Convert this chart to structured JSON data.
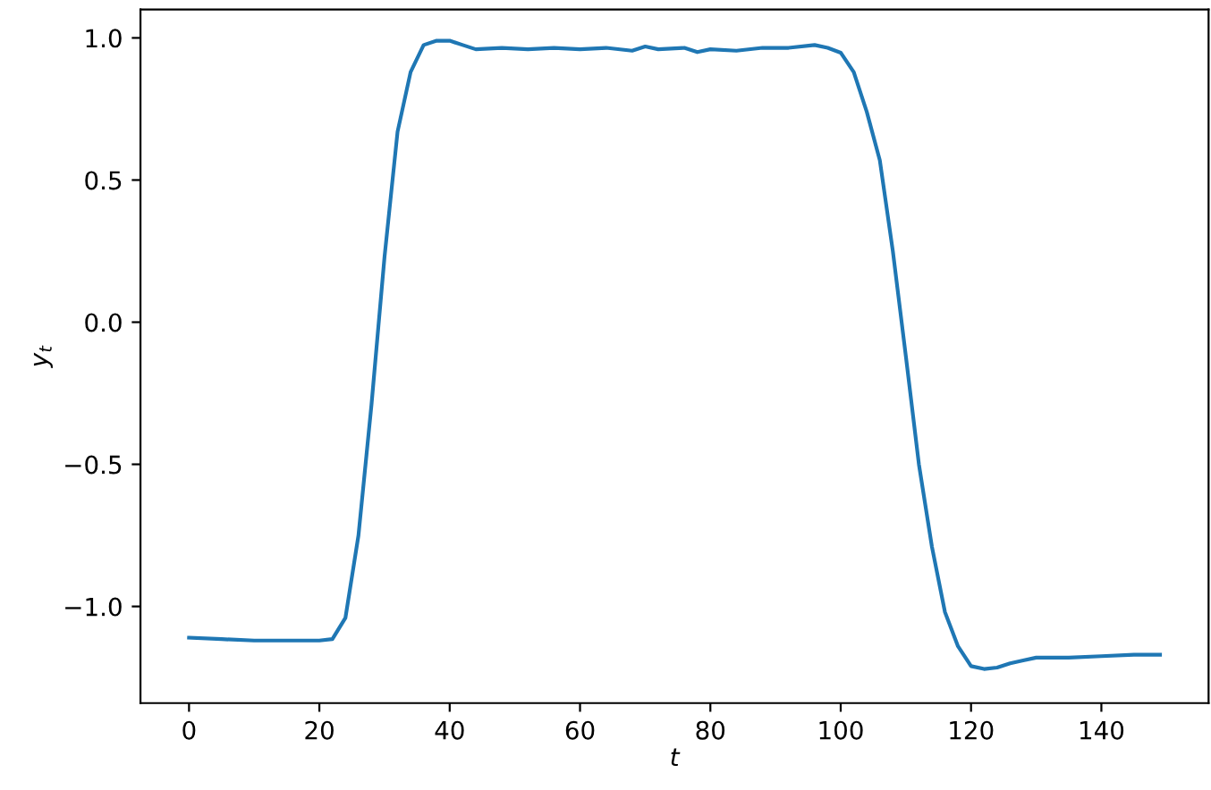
{
  "chart_data": {
    "type": "line",
    "xlabel": "t",
    "ylabel": "y$_{t}$",
    "x": [
      0,
      5,
      10,
      15,
      20,
      22,
      24,
      26,
      28,
      30,
      32,
      34,
      36,
      38,
      40,
      42,
      44,
      48,
      52,
      56,
      60,
      64,
      68,
      70,
      72,
      76,
      78,
      80,
      84,
      88,
      92,
      96,
      98,
      100,
      102,
      104,
      106,
      108,
      110,
      112,
      114,
      116,
      118,
      120,
      122,
      124,
      126,
      128,
      130,
      135,
      140,
      145,
      149
    ],
    "series": [
      {
        "color": "#1f77b4",
        "values": [
          -1.11,
          -1.115,
          -1.12,
          -1.12,
          -1.12,
          -1.115,
          -1.04,
          -0.75,
          -0.29,
          0.23,
          0.67,
          0.88,
          0.975,
          0.99,
          0.99,
          0.975,
          0.96,
          0.965,
          0.96,
          0.965,
          0.96,
          0.965,
          0.955,
          0.97,
          0.96,
          0.965,
          0.95,
          0.96,
          0.955,
          0.965,
          0.965,
          0.975,
          0.965,
          0.948,
          0.88,
          0.74,
          0.57,
          0.25,
          -0.12,
          -0.5,
          -0.79,
          -1.02,
          -1.14,
          -1.21,
          -1.22,
          -1.215,
          -1.2,
          -1.19,
          -1.18,
          -1.18,
          -1.175,
          -1.17,
          -1.17
        ]
      }
    ],
    "xlim": [
      -7.45,
      156.45
    ],
    "ylim": [
      -1.34,
      1.1
    ],
    "xticks": [
      0,
      20,
      40,
      60,
      80,
      100,
      120,
      140
    ],
    "yticks": [
      {
        "value": -1.0,
        "label": "−1.0"
      },
      {
        "value": -0.5,
        "label": "−0.5"
      },
      {
        "value": 0.0,
        "label": "0.0"
      },
      {
        "value": 0.5,
        "label": "0.5"
      },
      {
        "value": 1.0,
        "label": "1.0"
      }
    ],
    "grid": false,
    "legend": false
  }
}
